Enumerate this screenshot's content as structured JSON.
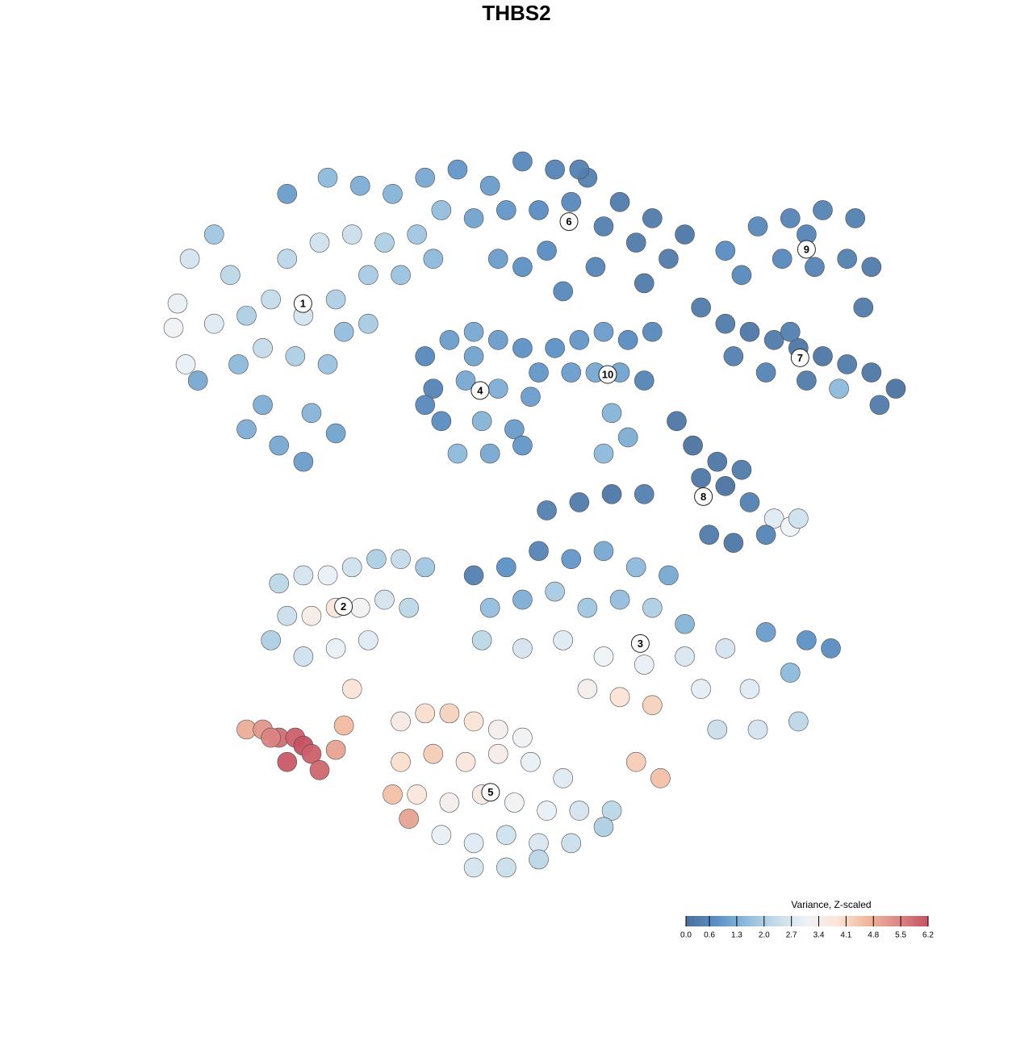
{
  "chart_data": {
    "type": "scatter",
    "title": "THBS2",
    "colorbar_title": "Variance, Z-scaled",
    "colorscale": [
      "#4a6f9b",
      "#5b8fc4",
      "#8fbcdc",
      "#c6dcea",
      "#eef3f7",
      "#fbe5d8",
      "#f0b79c",
      "#dc8a85",
      "#c65163"
    ],
    "clim": [
      0,
      6.2
    ],
    "cticks": [
      {
        "value": 0,
        "label": "0.0"
      },
      0.6,
      1.3,
      {
        "value": 2,
        "label": "2.0"
      },
      2.7,
      3.4,
      4.1,
      4.8,
      5.5,
      6.2
    ],
    "series": [
      {
        "name": "1",
        "x": [
          -41,
          -42.5,
          -43,
          -41.5,
          -38,
          -36,
          -34,
          -35,
          -32,
          -30,
          -27,
          -29,
          -24,
          -20,
          -16,
          -12,
          -10,
          -13,
          -17,
          -21,
          -25,
          -29,
          -31,
          -27,
          -23,
          -19,
          -15,
          -11,
          -28,
          -24,
          -32,
          -26,
          -23,
          -34,
          -38,
          -19,
          -22,
          -40
        ],
        "y": [
          31,
          25.5,
          22.5,
          18,
          34,
          29,
          24,
          18,
          13,
          8,
          6,
          39,
          41,
          40,
          39,
          41,
          37,
          34,
          33,
          34,
          33,
          31,
          26,
          24,
          26,
          29,
          29,
          31,
          19,
          18,
          20,
          12,
          9.5,
          10,
          23,
          23,
          22,
          16
        ],
        "values": [
          2.6,
          3.0,
          3.2,
          3.0,
          1.8,
          2.2,
          2.0,
          1.5,
          1.3,
          1.2,
          1.0,
          1.0,
          1.5,
          1.3,
          1.4,
          1.2,
          1.6,
          1.8,
          2.0,
          2.4,
          2.5,
          2.2,
          2.3,
          2.6,
          2.0,
          1.9,
          1.7,
          1.5,
          2.0,
          1.7,
          2.3,
          1.4,
          1.1,
          1.3,
          2.8,
          1.9,
          1.6,
          1.2
        ]
      },
      {
        "name": "2",
        "x": [
          -30,
          -27,
          -24,
          -21,
          -18,
          -15,
          -12,
          -29,
          -26,
          -23,
          -20,
          -17,
          -31,
          -27,
          -23,
          -19,
          -14,
          -21
        ],
        "y": [
          -9,
          -8,
          -8,
          -7,
          -6,
          -6,
          -7,
          -13,
          -13,
          -12,
          -12,
          -11,
          -16,
          -18,
          -17,
          -16,
          -12,
          -22
        ],
        "values": [
          2.2,
          2.6,
          3.0,
          2.5,
          2.0,
          2.3,
          1.8,
          2.4,
          3.5,
          3.8,
          3.2,
          2.6,
          2.0,
          2.5,
          3.0,
          2.8,
          2.2,
          3.9
        ]
      },
      {
        "name": "3",
        "x": [
          -6,
          -2,
          2,
          6,
          10,
          14,
          18,
          -4,
          0,
          4,
          8,
          12,
          16,
          20,
          -5,
          0,
          5,
          10,
          15,
          20,
          25,
          30,
          35,
          8,
          12,
          16,
          22,
          28,
          33,
          38,
          24,
          29,
          34,
          14,
          17
        ],
        "y": [
          -8,
          -7,
          -5,
          -6,
          -5,
          -7,
          -8,
          -12,
          -11,
          -10,
          -12,
          -11,
          -12,
          -14,
          -16,
          -17,
          -16,
          -18,
          -19,
          -18,
          -17,
          -15,
          -16,
          -22,
          -23,
          -24,
          -22,
          -22,
          -20,
          -17,
          -27,
          -27,
          -26,
          -31,
          -33
        ],
        "values": [
          0.4,
          0.8,
          0.5,
          0.9,
          1.2,
          1.5,
          1.2,
          1.6,
          1.3,
          1.9,
          1.8,
          1.6,
          2.0,
          1.4,
          2.2,
          2.6,
          2.8,
          3.1,
          3.0,
          2.7,
          2.6,
          1.0,
          0.8,
          3.4,
          3.9,
          4.2,
          2.9,
          2.8,
          1.5,
          0.7,
          2.4,
          2.6,
          2.2,
          4.3,
          4.5
        ]
      },
      {
        "name": "4",
        "x": [
          -12,
          -9,
          -6,
          -3,
          0,
          2,
          -11,
          -7,
          -3,
          1,
          -10,
          -5,
          -1,
          -8,
          -4,
          0,
          -12,
          -6
        ],
        "y": [
          19,
          21,
          22,
          21,
          20,
          17,
          15,
          16,
          15,
          14,
          11,
          11,
          10,
          7,
          7,
          8,
          13,
          19
        ],
        "values": [
          0.6,
          1.0,
          1.2,
          1.0,
          0.8,
          0.9,
          0.5,
          1.2,
          1.3,
          1.0,
          0.7,
          1.4,
          1.0,
          1.5,
          1.2,
          0.9,
          0.6,
          1.1
        ]
      },
      {
        "name": "5",
        "x": [
          -15,
          -12,
          -9,
          -6,
          -3,
          0,
          -15,
          -11,
          -7,
          -3,
          1,
          5,
          -13,
          -9,
          -5,
          -1,
          3,
          7,
          11,
          -10,
          -6,
          -2,
          2,
          6,
          10,
          -6,
          -2,
          2,
          -16,
          -14
        ],
        "y": [
          -26,
          -25,
          -25,
          -26,
          -27,
          -28,
          -31,
          -30,
          -31,
          -30,
          -31,
          -33,
          -35,
          -36,
          -35,
          -36,
          -37,
          -37,
          -37,
          -40,
          -41,
          -40,
          -41,
          -41,
          -39,
          -44,
          -44,
          -43,
          -35,
          -38
        ],
        "values": [
          3.6,
          4.0,
          4.2,
          3.9,
          3.4,
          3.2,
          4.0,
          4.3,
          3.8,
          3.5,
          3.0,
          2.8,
          3.8,
          3.4,
          3.6,
          3.2,
          3.0,
          2.6,
          2.2,
          3.0,
          2.8,
          2.5,
          2.7,
          2.4,
          2.0,
          2.6,
          2.4,
          2.2,
          4.5,
          5.0
        ]
      },
      {
        "name": "6",
        "x": [
          -8,
          -4,
          0,
          4,
          8,
          12,
          16,
          20,
          -6,
          -2,
          2,
          6,
          10,
          14,
          18,
          -3,
          3,
          9,
          15,
          5,
          0,
          7
        ],
        "y": [
          42,
          40,
          43,
          42,
          41,
          38,
          36,
          34,
          36,
          37,
          37,
          38,
          35,
          33,
          31,
          31,
          32,
          30,
          28,
          27,
          30,
          42
        ],
        "values": [
          0.9,
          1.0,
          0.6,
          0.5,
          0.4,
          0.3,
          0.3,
          0.2,
          1.1,
          0.9,
          0.7,
          0.6,
          0.4,
          0.3,
          0.3,
          1.0,
          0.7,
          0.5,
          0.3,
          0.6,
          0.8,
          0.4
        ]
      },
      {
        "name": "7",
        "x": [
          22,
          25,
          28,
          31,
          34,
          37,
          40,
          43,
          46,
          26,
          30,
          35,
          39,
          44,
          33
        ],
        "y": [
          25,
          23,
          22,
          21,
          20,
          19,
          18,
          17,
          15,
          19,
          17,
          16,
          15,
          13,
          22
        ],
        "values": [
          0.3,
          0.3,
          0.2,
          0.3,
          0.2,
          0.2,
          0.3,
          0.2,
          0.1,
          0.4,
          0.5,
          0.3,
          1.5,
          0.3,
          0.4
        ]
      },
      {
        "name": "8",
        "x": [
          19,
          21,
          24,
          27,
          22,
          25,
          28,
          31,
          33,
          23,
          26,
          30,
          34,
          3,
          7,
          11,
          15
        ],
        "y": [
          11,
          8,
          6,
          5,
          4,
          3,
          1,
          -1,
          -2,
          -3,
          -4,
          -3,
          -1,
          0,
          1,
          2,
          2
        ],
        "values": [
          0.2,
          0.1,
          0.2,
          0.3,
          0.2,
          0.1,
          0.4,
          2.8,
          3.1,
          0.3,
          0.2,
          0.5,
          2.5,
          0.4,
          0.3,
          0.2,
          0.4
        ]
      },
      {
        "name": "9",
        "x": [
          25,
          29,
          33,
          37,
          41,
          43,
          32,
          36,
          40,
          42,
          27,
          35
        ],
        "y": [
          32,
          35,
          36,
          37,
          36,
          30,
          31,
          30,
          31,
          25,
          29,
          34
        ],
        "values": [
          0.7,
          0.6,
          0.5,
          0.5,
          0.4,
          0.3,
          0.6,
          0.5,
          0.4,
          0.3,
          0.6,
          0.5
        ]
      },
      {
        "name": "10",
        "x": [
          4,
          7,
          10,
          13,
          16,
          6,
          9,
          12,
          15,
          11,
          13,
          10
        ],
        "y": [
          20,
          21,
          22,
          21,
          22,
          17,
          17,
          17,
          16,
          12,
          9,
          7
        ],
        "values": [
          0.8,
          0.9,
          1.0,
          0.7,
          0.6,
          1.0,
          1.2,
          1.1,
          0.5,
          1.4,
          1.3,
          1.5
        ]
      },
      {
        "x": [
          -34,
          -32,
          -30,
          -28,
          -27,
          -29,
          -26,
          -25,
          -31,
          -23,
          -22
        ],
        "y": [
          -27,
          -27,
          -28,
          -28,
          -29,
          -31,
          -30,
          -32,
          -28,
          -29.5,
          -26.5
        ],
        "values": [
          4.8,
          5.2,
          5.8,
          6.0,
          6.2,
          6.1,
          6.0,
          5.9,
          5.5,
          5.0,
          4.6
        ]
      }
    ]
  }
}
